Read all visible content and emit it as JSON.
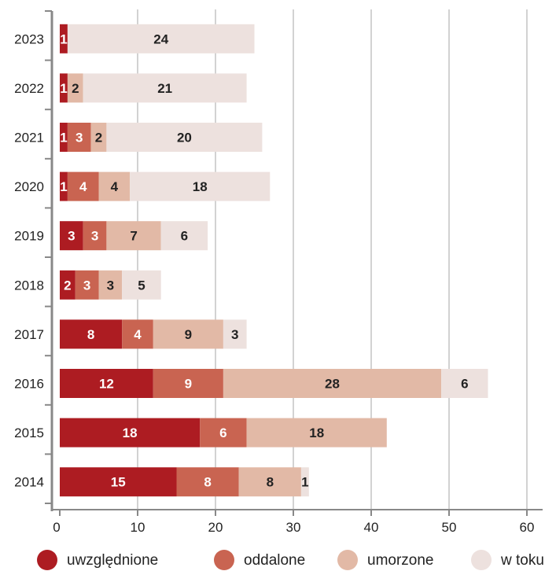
{
  "chart_data": {
    "type": "bar",
    "orientation": "horizontal",
    "stacked": true,
    "categories": [
      "2023",
      "2022",
      "2021",
      "2020",
      "2019",
      "2018",
      "2017",
      "2016",
      "2015",
      "2014"
    ],
    "series": [
      {
        "name": "uwzględnione",
        "color": "#ad1c22",
        "values": [
          1,
          1,
          1,
          1,
          3,
          2,
          8,
          12,
          18,
          15
        ],
        "label_color": "#ffffff"
      },
      {
        "name": "oddalone",
        "color": "#c96451",
        "values": [
          0,
          0,
          3,
          4,
          3,
          3,
          4,
          9,
          6,
          8
        ],
        "label_color": "#ffffff"
      },
      {
        "name": "umorzone",
        "color": "#e2b9a6",
        "values": [
          0,
          2,
          2,
          4,
          7,
          3,
          9,
          28,
          18,
          8
        ],
        "label_color": "#222222"
      },
      {
        "name": "w toku",
        "color": "#ede1de",
        "values": [
          24,
          21,
          20,
          18,
          6,
          5,
          3,
          6,
          0,
          1
        ],
        "label_color": "#222222"
      }
    ],
    "xlim": [
      0,
      60
    ],
    "xticks": [
      "0",
      "10",
      "20",
      "30",
      "40",
      "50",
      "60"
    ],
    "grid": "vertical",
    "legend_position": "bottom",
    "title": "",
    "xlabel": "",
    "ylabel": ""
  }
}
